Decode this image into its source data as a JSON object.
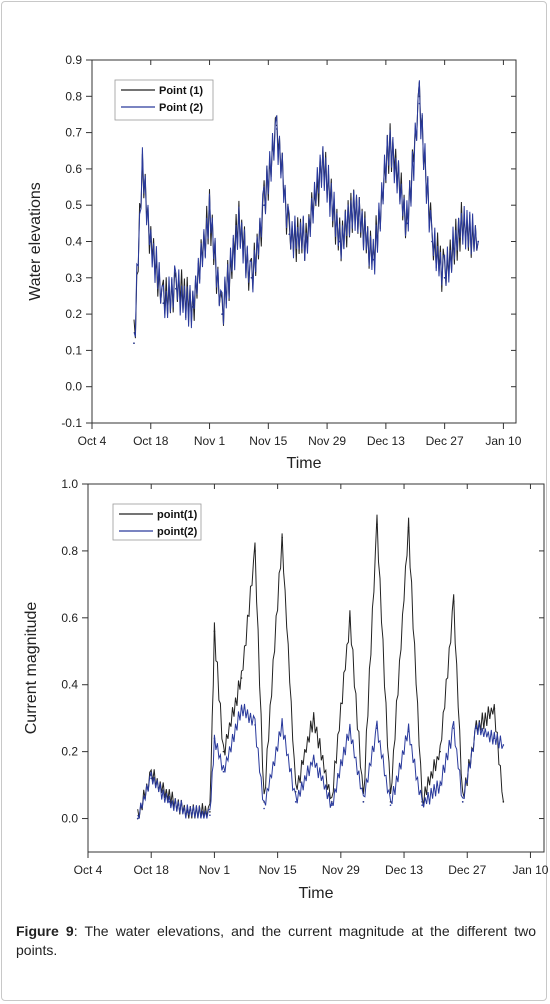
{
  "chart_data": [
    {
      "type": "line",
      "title": "",
      "xlabel": "Time",
      "ylabel": "Water elevations",
      "ylim": [
        -0.1,
        0.9
      ],
      "xlim": [
        "Oct 4",
        "Jan 13"
      ],
      "x_ticks": [
        "Oct 4",
        "Oct 18",
        "Nov 1",
        "Nov 15",
        "Nov 29",
        "Dec 13",
        "Dec 27",
        "Jan 10"
      ],
      "y_ticks": [
        "-0.1",
        "0.0",
        "0.1",
        "0.2",
        "0.3",
        "0.4",
        "0.5",
        "0.6",
        "0.7",
        "0.8",
        "0.9"
      ],
      "legend": "top-left",
      "colors": {
        "point1": "#222222",
        "point2": "#2a3a9c"
      },
      "series": [
        {
          "name": "Point (1)",
          "x": [
            "Oct 14",
            "Oct 16",
            "Oct 18",
            "Oct 21",
            "Oct 24",
            "Oct 28",
            "Nov 1",
            "Nov 4",
            "Nov 8",
            "Nov 11",
            "Nov 14",
            "Nov 17",
            "Nov 20",
            "Nov 24",
            "Nov 28",
            "Dec 2",
            "Dec 6",
            "Dec 10",
            "Dec 14",
            "Dec 18",
            "Dec 21",
            "Dec 24",
            "Dec 27",
            "Dec 31",
            "Jan 4"
          ],
          "values": [
            0.12,
            0.6,
            0.4,
            0.23,
            0.27,
            0.22,
            0.48,
            0.2,
            0.45,
            0.3,
            0.5,
            0.72,
            0.42,
            0.4,
            0.62,
            0.4,
            0.5,
            0.35,
            0.68,
            0.45,
            0.8,
            0.4,
            0.3,
            0.45,
            0.4
          ]
        },
        {
          "name": "Point (2)",
          "x": [
            "Oct 14",
            "Oct 16",
            "Oct 18",
            "Oct 21",
            "Oct 24",
            "Oct 28",
            "Nov 1",
            "Nov 4",
            "Nov 8",
            "Nov 11",
            "Nov 14",
            "Nov 17",
            "Nov 20",
            "Nov 24",
            "Nov 28",
            "Dec 2",
            "Dec 6",
            "Dec 10",
            "Dec 14",
            "Dec 18",
            "Dec 21",
            "Dec 24",
            "Dec 27",
            "Dec 31",
            "Jan 4"
          ],
          "values": [
            0.12,
            0.6,
            0.4,
            0.23,
            0.27,
            0.22,
            0.48,
            0.2,
            0.45,
            0.3,
            0.5,
            0.71,
            0.42,
            0.4,
            0.62,
            0.4,
            0.5,
            0.35,
            0.68,
            0.45,
            0.78,
            0.4,
            0.3,
            0.45,
            0.4
          ]
        }
      ]
    },
    {
      "type": "line",
      "title": "",
      "xlabel": "Time",
      "ylabel": "Current magnitude",
      "ylim": [
        -0.1,
        1.0
      ],
      "xlim": [
        "Oct 4",
        "Jan 13"
      ],
      "x_ticks": [
        "Oct 4",
        "Oct 18",
        "Nov 1",
        "Nov 15",
        "Nov 29",
        "Dec 13",
        "Dec 27",
        "Jan 10"
      ],
      "y_ticks": [
        "0.0",
        "0.2",
        "0.4",
        "0.6",
        "0.8",
        "1.0"
      ],
      "legend": "top-left",
      "colors": {
        "point1": "#222222",
        "point2": "#2a3a9c"
      },
      "series": [
        {
          "name": "point(1)",
          "x": [
            "Oct 15",
            "Oct 18",
            "Oct 22",
            "Oct 26",
            "Oct 31",
            "Nov 1",
            "Nov 3",
            "Nov 7",
            "Nov 10",
            "Nov 12",
            "Nov 16",
            "Nov 19",
            "Nov 23",
            "Nov 27",
            "Dec 1",
            "Dec 4",
            "Dec 7",
            "Dec 10",
            "Dec 14",
            "Dec 17",
            "Dec 21",
            "Dec 24",
            "Dec 26",
            "Dec 29",
            "Jan 2",
            "Jan 4"
          ],
          "values": [
            0.0,
            0.13,
            0.06,
            0.02,
            0.02,
            0.56,
            0.2,
            0.42,
            0.8,
            0.05,
            0.84,
            0.08,
            0.3,
            0.05,
            0.6,
            0.05,
            0.88,
            0.05,
            0.87,
            0.05,
            0.2,
            0.65,
            0.05,
            0.27,
            0.33,
            0.05
          ]
        },
        {
          "name": "point(2)",
          "x": [
            "Oct 15",
            "Oct 18",
            "Oct 22",
            "Oct 26",
            "Oct 31",
            "Nov 1",
            "Nov 3",
            "Nov 7",
            "Nov 10",
            "Nov 12",
            "Nov 16",
            "Nov 19",
            "Nov 23",
            "Nov 27",
            "Dec 1",
            "Dec 4",
            "Dec 7",
            "Dec 10",
            "Dec 14",
            "Dec 17",
            "Dec 21",
            "Dec 24",
            "Dec 26",
            "Dec 29",
            "Jan 2",
            "Jan 4"
          ],
          "values": [
            0.0,
            0.12,
            0.05,
            0.02,
            0.01,
            0.24,
            0.14,
            0.33,
            0.28,
            0.03,
            0.28,
            0.05,
            0.18,
            0.04,
            0.27,
            0.05,
            0.27,
            0.04,
            0.26,
            0.04,
            0.1,
            0.27,
            0.05,
            0.27,
            0.24,
            0.22
          ]
        }
      ]
    }
  ],
  "caption": {
    "label": "Figure 9",
    "text": ": The water elevations, and the current magnitude at the different two points."
  }
}
